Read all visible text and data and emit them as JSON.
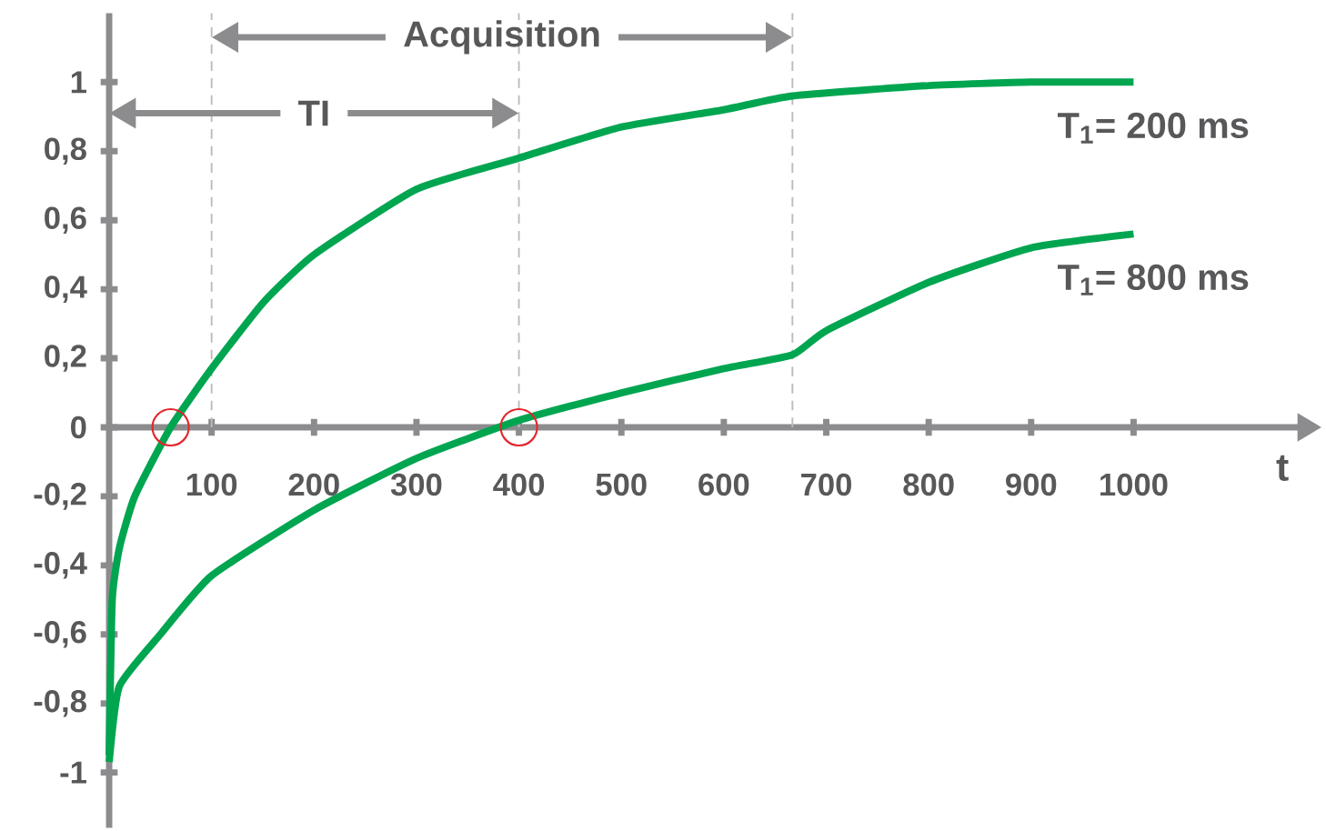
{
  "chart_data": {
    "type": "line",
    "xlabel": "t",
    "xlim": [
      0,
      1160
    ],
    "ylim": [
      -1.16,
      1.2
    ],
    "xticks": [
      100,
      200,
      300,
      400,
      500,
      600,
      700,
      800,
      900,
      1000
    ],
    "yticks": [
      {
        "value": -1,
        "label": "-1"
      },
      {
        "value": -0.8,
        "label": "-0,8"
      },
      {
        "value": -0.6,
        "label": "-0,6"
      },
      {
        "value": -0.4,
        "label": "-0,4"
      },
      {
        "value": -0.2,
        "label": "-0,2"
      },
      {
        "value": 0,
        "label": "0"
      },
      {
        "value": 0.2,
        "label": "0,2"
      },
      {
        "value": 0.4,
        "label": "0,4"
      },
      {
        "value": 0.6,
        "label": "0,6"
      },
      {
        "value": 0.8,
        "label": "0,8"
      },
      {
        "value": 1,
        "label": "1"
      }
    ],
    "grid": false,
    "series": [
      {
        "name": "T$_{1}$= 200 ms",
        "color": "#00a550",
        "x": [
          0,
          3,
          10,
          25,
          60,
          100,
          150,
          200,
          300,
          400,
          500,
          600,
          667,
          800,
          900,
          1000
        ],
        "values": [
          -0.95,
          -0.5,
          -0.35,
          -0.2,
          0,
          0.17,
          0.36,
          0.5,
          0.69,
          0.78,
          0.87,
          0.92,
          0.96,
          0.99,
          1,
          1
        ]
      },
      {
        "name": "T$_{1}$= 800 ms",
        "color": "#00a550",
        "x": [
          0,
          10,
          50,
          100,
          200,
          300,
          400,
          500,
          600,
          667,
          700,
          800,
          900,
          1000
        ],
        "values": [
          -0.97,
          -0.75,
          -0.6,
          -0.43,
          -0.24,
          -0.09,
          0.02,
          0.1,
          0.17,
          0.21,
          0.28,
          0.42,
          0.52,
          0.56
        ]
      },
      {
        "type": "scatter",
        "color": "#e3262b",
        "marker": "circle",
        "x": [
          60,
          400
        ],
        "values": [
          0,
          0
        ]
      }
    ],
    "ref_lines": [
      {
        "axis": "x",
        "value": 100,
        "color": "#bbbbbb",
        "line_style": "dashed"
      },
      {
        "axis": "x",
        "value": 400,
        "color": "#bbbbbb",
        "line_style": "dashed"
      },
      {
        "axis": "x",
        "value": 667,
        "color": "#bbbbbb",
        "line_style": "dashed"
      }
    ],
    "annotations": [
      "Acquisition",
      "TI"
    ]
  }
}
